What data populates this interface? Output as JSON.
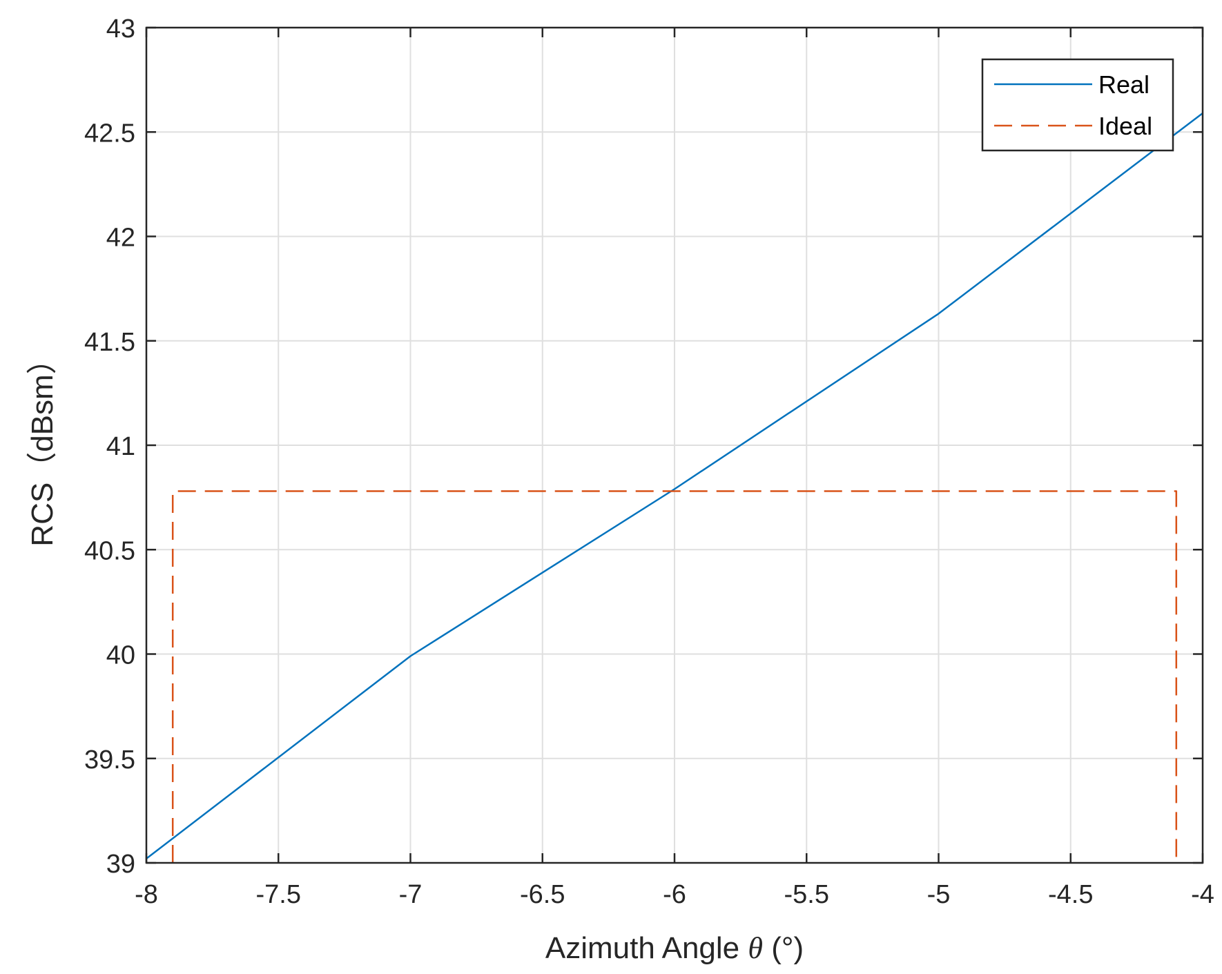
{
  "chart_data": {
    "type": "line",
    "xlabel_prefix": "Azimuth Angle ",
    "xlabel_symbol": "θ",
    "xlabel_suffix": " (°)",
    "ylabel": "RCS（dBsm）",
    "xlim": [
      -8,
      -4
    ],
    "ylim": [
      39,
      43
    ],
    "xticks": [
      -8,
      -7.5,
      -7,
      -6.5,
      -6,
      -5.5,
      -5,
      -4.5,
      -4
    ],
    "xtick_labels": [
      "-8",
      "-7.5",
      "-7",
      "-6.5",
      "-6",
      "-5.5",
      "-5",
      "-4.5",
      "-4"
    ],
    "yticks": [
      39,
      39.5,
      40,
      40.5,
      41,
      41.5,
      42,
      42.5,
      43
    ],
    "ytick_labels": [
      "39",
      "39.5",
      "40",
      "40.5",
      "41",
      "41.5",
      "42",
      "42.5",
      "43"
    ],
    "grid": true,
    "legend_position": "top-right",
    "series": [
      {
        "name": "Real",
        "color": "#0072BD",
        "style": "solid",
        "x": [
          -8,
          -7,
          -6,
          -5,
          -4
        ],
        "y": [
          39.02,
          39.99,
          40.79,
          41.63,
          42.59
        ]
      },
      {
        "name": "Ideal",
        "color": "#D95319",
        "style": "dashed",
        "x": [
          -7.9,
          -7.9,
          -4.1,
          -4.1
        ],
        "y": [
          39,
          40.78,
          40.78,
          39
        ]
      }
    ]
  }
}
